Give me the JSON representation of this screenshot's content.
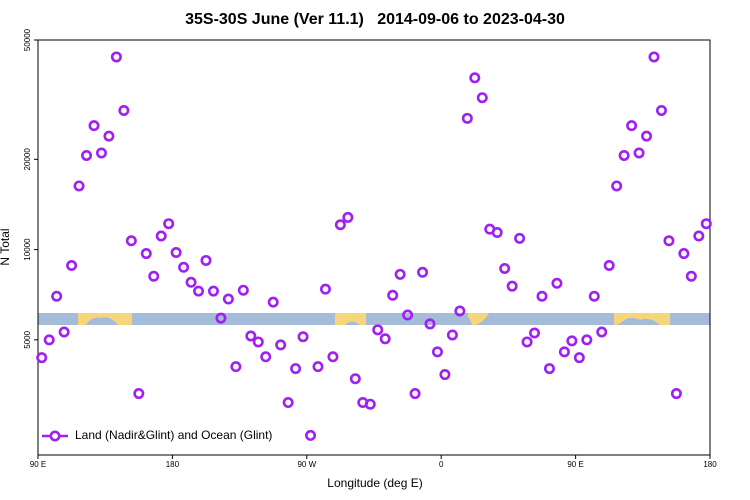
{
  "chart_data": {
    "type": "scatter",
    "title": "35S-30S June (Ver 11.1)   2014-09-06 to 2023-04-30",
    "x_label": "Longitude (deg E)",
    "y_label": "N Total",
    "log_y": true,
    "legend": "lower left",
    "xlim": [
      90,
      540
    ],
    "ylim": [
      2065,
      50000
    ],
    "xticks": [
      {
        "value": 90,
        "label": "90 E"
      },
      180,
      {
        "value": 270,
        "label": "90 W"
      },
      {
        "value": 360,
        "label": "0"
      },
      {
        "value": 450,
        "label": "90 E"
      },
      {
        "value": 540,
        "label": "180"
      }
    ],
    "yticks": [
      5000,
      10000,
      20000,
      50000
    ],
    "series": [
      {
        "name": "Land (Nadir&Glint) and Ocean (Glint)",
        "color": "#a020f0",
        "x": [
          92.5,
          97.5,
          102.5,
          107.5,
          112.5,
          117.5,
          122.5,
          127.5,
          132.5,
          137.5,
          142.5,
          147.5,
          152.5,
          157.5,
          162.5,
          167.5,
          172.5,
          177.5,
          182.5,
          187.5,
          192.5,
          197.5,
          202.5,
          207.5,
          212.5,
          217.5,
          222.5,
          227.5,
          232.5,
          237.5,
          242.5,
          247.5,
          252.5,
          257.5,
          262.5,
          267.5,
          272.5,
          277.5,
          282.5,
          287.5,
          292.5,
          297.5,
          302.5,
          307.5,
          312.5,
          317.5,
          322.5,
          327.5,
          332.5,
          337.5,
          342.5,
          347.5,
          352.5,
          357.5,
          362.5,
          367.5,
          372.5,
          377.5,
          382.5,
          387.5,
          392.5,
          397.5,
          402.5,
          407.5,
          412.5,
          417.5,
          422.5,
          427.5,
          432.5,
          437.5,
          442.5,
          447.5,
          452.5,
          457.5,
          462.5,
          467.5,
          472.5,
          477.5,
          482.5,
          487.5,
          492.5,
          497.5,
          502.5,
          507.5,
          512.5,
          517.5,
          522.5,
          527.5,
          532.5,
          537.5
        ],
        "values": [
          4360,
          5000,
          6990,
          5310,
          8850,
          16300,
          20600,
          25900,
          21000,
          23900,
          43900,
          29100,
          10700,
          3310,
          9700,
          8150,
          11100,
          12200,
          9780,
          8730,
          7780,
          7270,
          9200,
          7270,
          5910,
          6840,
          4070,
          7320,
          5150,
          4920,
          4390,
          6680,
          4810,
          3090,
          4010,
          5120,
          2400,
          4070,
          7380,
          4390,
          12100,
          12800,
          3710,
          3090,
          3050,
          5400,
          5040,
          7040,
          8270,
          6050,
          3310,
          8400,
          5650,
          4560,
          3830,
          5190,
          6240,
          27400,
          37400,
          32100,
          11700,
          11400,
          8650,
          7550,
          10900,
          4920,
          5270,
          6990,
          4010,
          7720,
          4560,
          4960,
          4360,
          5000,
          6990,
          5310,
          8850,
          16300,
          20600,
          25900,
          21000,
          23900,
          43900,
          29100,
          10700,
          3310,
          9700,
          8150,
          11100,
          12200
        ]
      }
    ]
  }
}
